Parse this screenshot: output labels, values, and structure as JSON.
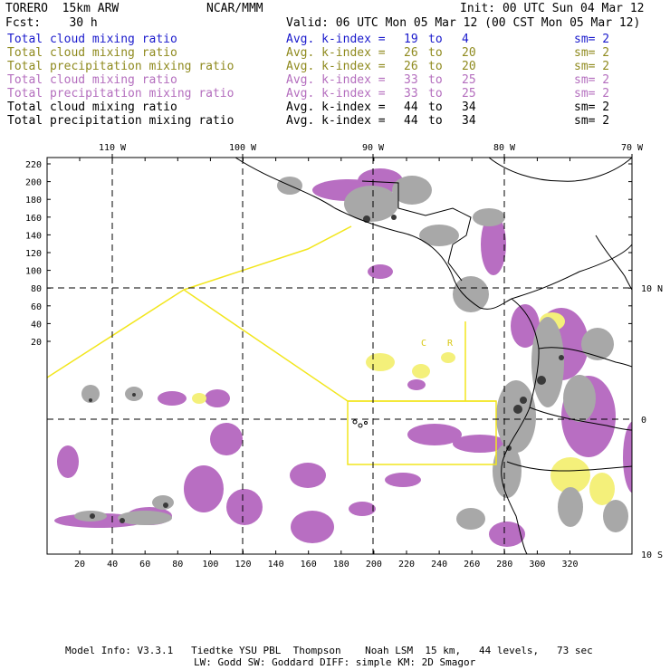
{
  "header": {
    "model": "TORERO  15km ARW",
    "org": "NCAR/MMM",
    "init": "Init: 00 UTC Sun 04 Mar 12",
    "fcst": "Fcst:    30 h",
    "valid": "Valid: 06 UTC Mon 05 Mar 12 (00 CST Mon 05 Mar 12)"
  },
  "legend": [
    {
      "field": "Total cloud mixing ratio",
      "kindex": "Avg. k-index =",
      "from": "19",
      "to_word": "to",
      "to": "4",
      "sm": "sm= 2",
      "color": "#1a1acc"
    },
    {
      "field": "Total cloud mixing ratio",
      "kindex": "Avg. k-index =",
      "from": "26",
      "to_word": "to",
      "to": "20",
      "sm": "sm= 2",
      "color": "#8f8a1e"
    },
    {
      "field": "Total precipitation mixing ratio",
      "kindex": "Avg. k-index =",
      "from": "26",
      "to_word": "to",
      "to": "20",
      "sm": "sm= 2",
      "color": "#8f8a1e"
    },
    {
      "field": "Total cloud mixing ratio",
      "kindex": "Avg. k-index =",
      "from": "33",
      "to_word": "to",
      "to": "25",
      "sm": "sm= 2",
      "color": "#b46ebe"
    },
    {
      "field": "Total precipitation mixing ratio",
      "kindex": "Avg. k-index =",
      "from": "33",
      "to_word": "to",
      "to": "25",
      "sm": "sm= 2",
      "color": "#b46ebe"
    },
    {
      "field": "Total cloud mixing ratio",
      "kindex": "Avg. k-index =",
      "from": "44",
      "to_word": "to",
      "to": "34",
      "sm": "sm= 2",
      "color": "#000000"
    },
    {
      "field": "Total precipitation mixing ratio",
      "kindex": "Avg. k-index =",
      "from": "44",
      "to_word": "to",
      "to": "34",
      "sm": "sm= 2",
      "color": "#000000"
    }
  ],
  "map": {
    "lon_labels": [
      "110 W",
      "100 W",
      "90 W",
      "80 W",
      "70 W"
    ],
    "lat_labels": [
      "10 N",
      "0",
      "10 S"
    ],
    "y_ticks": [
      "220",
      "200",
      "180",
      "160",
      "140",
      "120",
      "100",
      "80",
      "60",
      "40",
      "20"
    ],
    "x_ticks": [
      "20",
      "40",
      "60",
      "80",
      "100",
      "120",
      "140",
      "160",
      "180",
      "200",
      "220",
      "240",
      "260",
      "280",
      "300",
      "320"
    ],
    "inner_labels": [
      "C",
      "R"
    ],
    "colors": {
      "cloud_light": "#b86ec2",
      "cloud_yellow": "#f4f07a",
      "gray": "#a8a8a8",
      "dark": "#3a3a3a",
      "domain_line": "#f2e61e"
    }
  },
  "footer": {
    "line1": "Model Info: V3.3.1   Tiedtke YSU PBL  Thompson    Noah LSM  15 km,   44 levels,   73 sec",
    "line2": "LW: Godd SW: Goddard DIFF: simple KM: 2D Smagor"
  }
}
